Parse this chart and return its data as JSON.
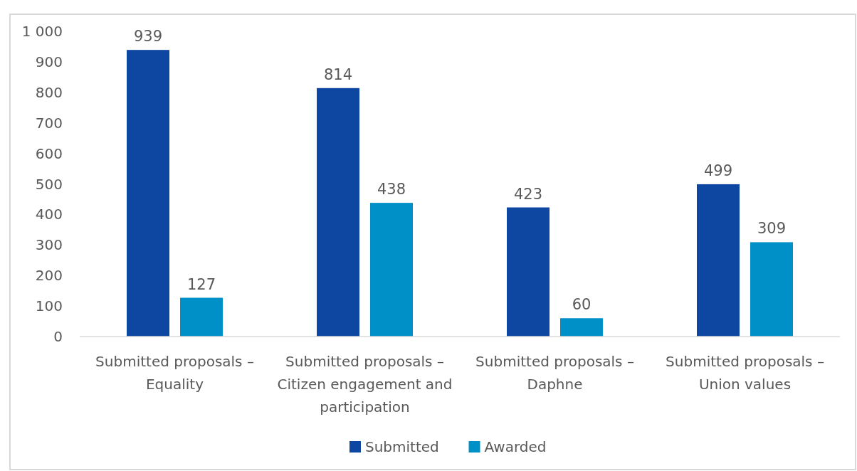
{
  "chart_data": {
    "type": "bar",
    "categories": [
      "Submitted proposals – Equality",
      "Submitted proposals – Citizen engagement and participation",
      "Submitted proposals – Daphne",
      "Submitted proposals – Union values"
    ],
    "series": [
      {
        "name": "Submitted",
        "color": "#0d47a1",
        "values": [
          939,
          814,
          423,
          499
        ]
      },
      {
        "name": "Awarded",
        "color": "#0090c8",
        "values": [
          127,
          438,
          60,
          309
        ]
      }
    ],
    "ylim": [
      0,
      1000
    ],
    "yticks": [
      0,
      100,
      200,
      300,
      400,
      500,
      600,
      700,
      800,
      900,
      {
        "value": 1000,
        "label": "1 000"
      }
    ],
    "grid": false,
    "legend": "bottom",
    "data_labels": true
  }
}
